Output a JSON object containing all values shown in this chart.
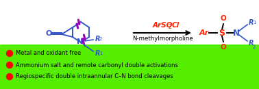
{
  "background_color": "#ffffff",
  "green_box_color": "#55ee00",
  "bullet_color": "#ff0000",
  "bullet_texts": [
    "Metal and oxidant free",
    "Ammonium salt and remote carbonyl double activations",
    "Regiospecific double intraannular C–N bond cleavages"
  ],
  "arrow_color": "#000000",
  "reagent_text": "ArSO",
  "reagent_sub": "2",
  "reagent_end": "Cl",
  "reagent_color": "#ff2200",
  "condition_text": "N-methylmorpholine",
  "condition_color": "#000000",
  "blue_color": "#3355cc",
  "red_color": "#ff2200",
  "purple_color": "#9900bb"
}
